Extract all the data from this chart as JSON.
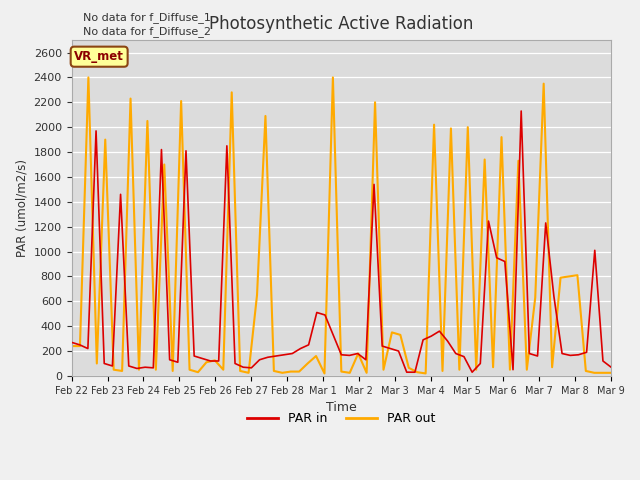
{
  "title": "Photosynthetic Active Radiation",
  "ylabel": "PAR (umol/m2/s)",
  "xlabel": "Time",
  "annotation_line1": "No data for f_Diffuse_1",
  "annotation_line2": "No data for f_Diffuse_2",
  "vr_label": "VR_met",
  "ylim": [
    0,
    2700
  ],
  "yticks": [
    0,
    200,
    400,
    600,
    800,
    1000,
    1200,
    1400,
    1600,
    1800,
    2000,
    2200,
    2400,
    2600
  ],
  "xtick_labels": [
    "Feb 22",
    "Feb 23",
    "Feb 24",
    "Feb 25",
    "Feb 26",
    "Feb 27",
    "Feb 28",
    "Mar 1",
    "Mar 2",
    "Mar 3",
    "Mar 4",
    "Mar 5",
    "Mar 6",
    "Mar 7",
    "Mar 8",
    "Mar 9"
  ],
  "color_par_in": "#dd0000",
  "color_par_out": "#ffaa00",
  "legend_par_in": "PAR in",
  "legend_par_out": "PAR out",
  "background_color": "#dcdcdc",
  "par_in": [
    270,
    250,
    220,
    1970,
    100,
    80,
    1460,
    80,
    60,
    70,
    65,
    1820,
    130,
    110,
    1810,
    160,
    140,
    120,
    120,
    1850,
    100,
    70,
    65,
    130,
    150,
    160,
    170,
    180,
    220,
    250,
    510,
    490,
    330,
    170,
    165,
    180,
    130,
    1540,
    240,
    220,
    200,
    30,
    30,
    290,
    320,
    360,
    280,
    180,
    155,
    30,
    100,
    1245,
    950,
    920,
    50,
    2130,
    180,
    160,
    1230,
    640,
    180,
    165,
    170,
    190,
    1010,
    120,
    70
  ],
  "par_out": [
    240,
    240,
    2400,
    100,
    1900,
    50,
    40,
    2230,
    50,
    2050,
    50,
    1700,
    40,
    2210,
    50,
    30,
    110,
    125,
    50,
    2280,
    40,
    25,
    650,
    2090,
    40,
    25,
    35,
    35,
    100,
    160,
    20,
    2400,
    35,
    25,
    180,
    25,
    2200,
    50,
    350,
    330,
    65,
    30,
    20,
    2020,
    40,
    1990,
    50,
    2000,
    50,
    1740,
    70,
    1920,
    50,
    1730,
    50,
    630,
    2350,
    70,
    790,
    800,
    810,
    40,
    25,
    25,
    25
  ]
}
